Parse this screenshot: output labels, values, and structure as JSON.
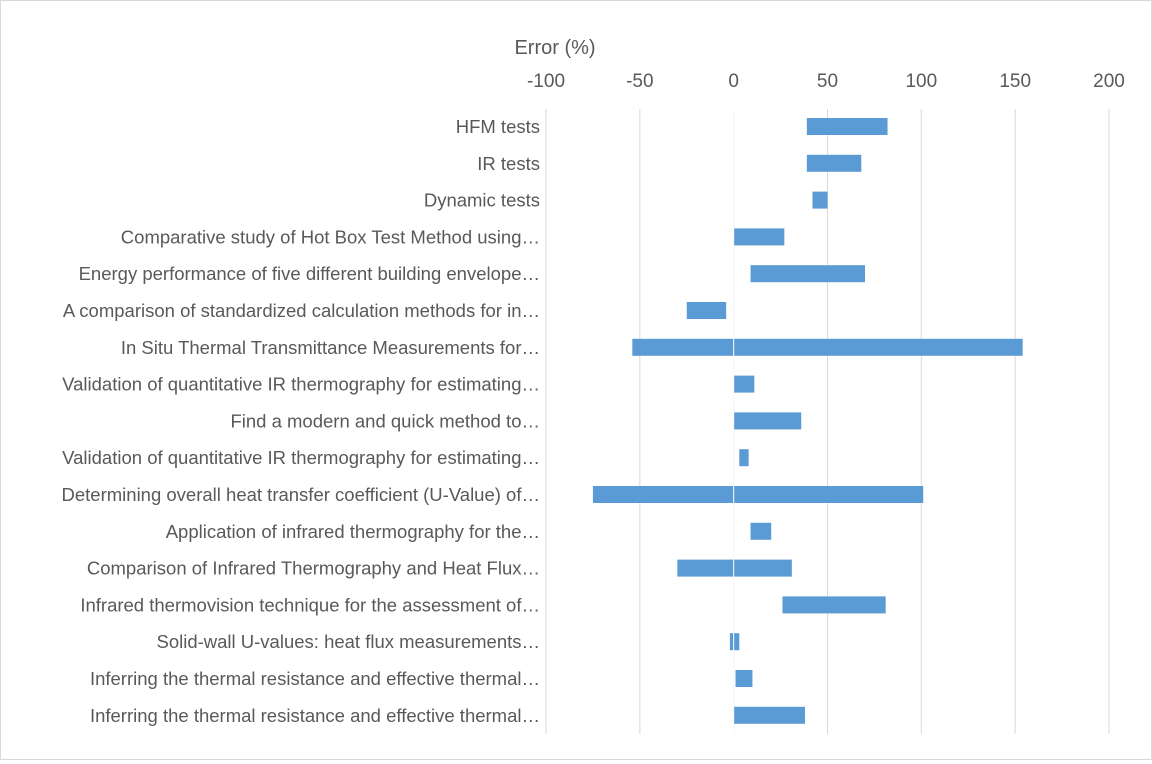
{
  "chart_data": {
    "type": "bar",
    "orientation": "horizontal",
    "floating": true,
    "xlabel": "Error (%)",
    "x_axis_position": "top",
    "xlim": [
      -100,
      200
    ],
    "xticks": [
      -100,
      -50,
      0,
      50,
      100,
      150,
      200
    ],
    "grid": "vertical",
    "bar_color": "#5b9bd5",
    "categories": [
      "HFM tests",
      "IR tests",
      "Dynamic tests",
      "Comparative study of Hot Box Test Method using…",
      "Energy performance of five different building envelope…",
      "A comparison of standardized calculation methods for in…",
      "In Situ Thermal Transmittance Measurements for…",
      "Validation of quantitative IR thermography for estimating…",
      "Find a modern and quick method to…",
      "Validation of quantitative IR thermography for estimating…",
      "Determining overall heat transfer coefficient (U-Value) of…",
      "Application of infrared thermography for the…",
      "Comparison of Infrared Thermography and Heat Flux…",
      "Infrared thermovision technique for the assessment of…",
      "Solid-wall U-values: heat flux measurements…",
      "Inferring the thermal resistance and effective thermal…",
      "Inferring the thermal resistance and effective thermal…"
    ],
    "ranges": [
      [
        39,
        82
      ],
      [
        39,
        68
      ],
      [
        42,
        50
      ],
      [
        0,
        27
      ],
      [
        9,
        70
      ],
      [
        -25,
        -4
      ],
      [
        -54,
        154
      ],
      [
        0,
        11
      ],
      [
        0,
        36
      ],
      [
        3,
        8
      ],
      [
        -75,
        101
      ],
      [
        9,
        20
      ],
      [
        -30,
        31
      ],
      [
        26,
        81
      ],
      [
        -2,
        3
      ],
      [
        1,
        10
      ],
      [
        0,
        38
      ]
    ]
  }
}
